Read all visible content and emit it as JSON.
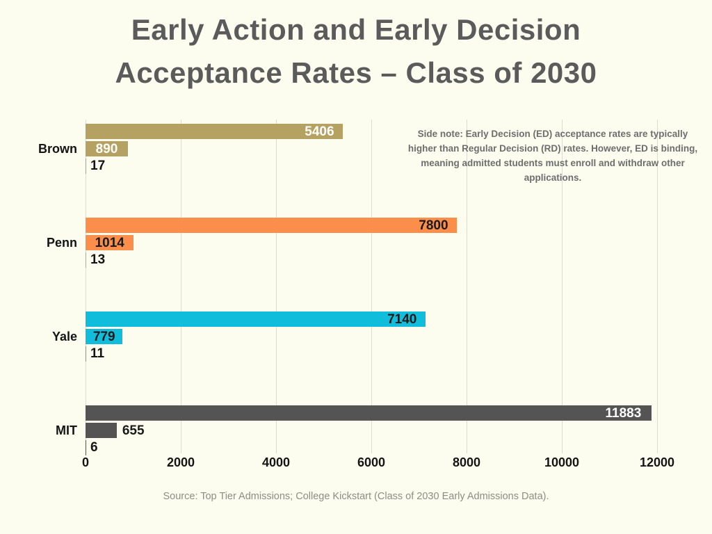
{
  "title": {
    "line1": "Early Action and Early Decision",
    "line2": "Acceptance Rates – Class of 2030",
    "color": "#5b5b5b"
  },
  "side_note": {
    "text": "Side note: Early Decision (ED) acceptance rates are typically higher than Regular Decision (RD) rates. However, ED is binding, meaning admitted students must enroll and withdraw other applications.",
    "color": "#6e6e6e"
  },
  "source": {
    "text": "Source: Top Tier Admissions; College Kickstart (Class of 2030 Early Admissions Data).",
    "color": "#8d8d84"
  },
  "chart_data": {
    "type": "bar",
    "orientation": "horizontal",
    "title": "Early Action and Early Decision Acceptance Rates – Class of 2030",
    "xlabel": "",
    "ylabel": "",
    "xlim": [
      0,
      12000
    ],
    "x_ticks": [
      0,
      2000,
      4000,
      6000,
      8000,
      10000,
      12000
    ],
    "grid": true,
    "categories": [
      "Brown",
      "Penn",
      "Yale",
      "MIT"
    ],
    "series": [
      {
        "name": "early_applications",
        "values": [
          5406,
          7800,
          7140,
          11883
        ]
      },
      {
        "name": "early_admits",
        "values": [
          890,
          1014,
          779,
          655
        ]
      },
      {
        "name": "acceptance_rate_percent",
        "values": [
          17,
          13,
          11,
          6
        ]
      }
    ],
    "bar_colors": [
      "#b5a161",
      "#fb8e4a",
      "#10bedc",
      "#545454"
    ],
    "value_label_styles": [
      {
        "applied_color": "#ffffff",
        "applied_inside": true,
        "admitted_color": "#ffffff",
        "admitted_inside": true
      },
      {
        "applied_color": "#1a1a1a",
        "applied_inside": true,
        "admitted_color": "#1a1a1a",
        "admitted_inside": true
      },
      {
        "applied_color": "#1a1a1a",
        "applied_inside": true,
        "admitted_color": "#1a1a1a",
        "admitted_inside": true
      },
      {
        "applied_color": "#ffffff",
        "applied_inside": true,
        "admitted_color": "#1a1a1a",
        "admitted_inside": false
      }
    ]
  }
}
